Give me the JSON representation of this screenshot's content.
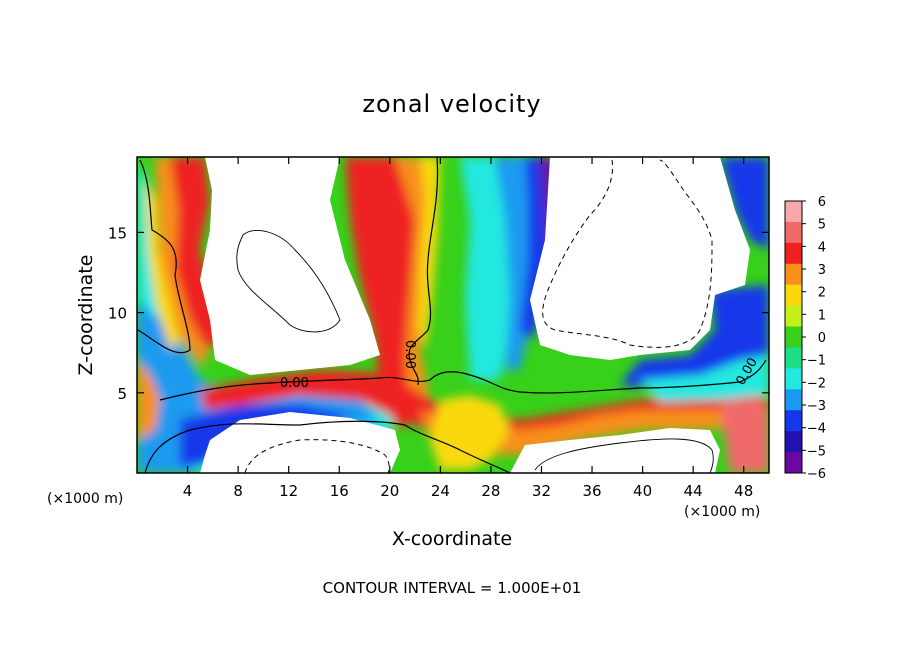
{
  "chart_data": {
    "type": "heatmap",
    "title": "zonal velocity",
    "xlabel": "X-coordinate",
    "ylabel": "Z-coordinate",
    "x_unit": "(×1000 m)",
    "z_unit": "(×1000 m)",
    "xlim": [
      0,
      50
    ],
    "ylim": [
      0,
      19.7
    ],
    "x_ticks": [
      "4",
      "8",
      "12",
      "16",
      "20",
      "24",
      "28",
      "32",
      "36",
      "40",
      "44",
      "48"
    ],
    "x_tick_values": [
      4,
      8,
      12,
      16,
      20,
      24,
      28,
      32,
      36,
      40,
      44,
      48
    ],
    "y_ticks": [
      "5",
      "10",
      "15"
    ],
    "y_tick_values": [
      5,
      10,
      15
    ],
    "colorbar": {
      "labels": [
        "6",
        "5",
        "4",
        "3",
        "2",
        "1",
        "0",
        "−1",
        "−2",
        "−3",
        "−4",
        "−5",
        "−6"
      ],
      "values": [
        6,
        5,
        4,
        3,
        2,
        1,
        0,
        -1,
        -2,
        -3,
        -4,
        -5,
        -6
      ],
      "colors": [
        "#f7a8a8",
        "#f06a6a",
        "#ee2020",
        "#f6901a",
        "#f9d90b",
        "#c5ef1a",
        "#37d01a",
        "#1cde86",
        "#22e8e0",
        "#1a9af0",
        "#1538ea",
        "#2212b0",
        "#6a08a0"
      ]
    },
    "contour_labels": [
      "0.00",
      "0.00",
      "0.00"
    ],
    "contour_interval": "CONTOUR INTERVAL = 1.000E+01"
  },
  "colors": {
    "frame": "#000000",
    "background": "#ffffff"
  }
}
